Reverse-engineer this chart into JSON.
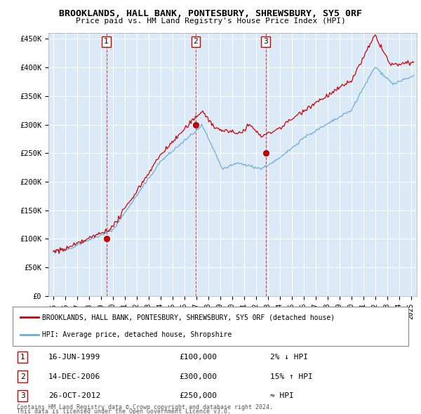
{
  "title": "BROOKLANDS, HALL BANK, PONTESBURY, SHREWSBURY, SY5 0RF",
  "subtitle": "Price paid vs. HM Land Registry's House Price Index (HPI)",
  "ylim": [
    0,
    460000
  ],
  "yticks": [
    0,
    50000,
    100000,
    150000,
    200000,
    250000,
    300000,
    350000,
    400000,
    450000
  ],
  "ytick_labels": [
    "£0",
    "£50K",
    "£100K",
    "£150K",
    "£200K",
    "£250K",
    "£300K",
    "£350K",
    "£400K",
    "£450K"
  ],
  "sale_dates": [
    "1999-06-16",
    "2006-12-14",
    "2012-10-26"
  ],
  "sale_prices": [
    100000,
    300000,
    250000
  ],
  "sale_years": [
    1999.46,
    2006.96,
    2012.82
  ],
  "sale_labels": [
    "1",
    "2",
    "3"
  ],
  "sale_info": [
    {
      "label": "1",
      "date": "16-JUN-1999",
      "price": "£100,000",
      "hpi": "2% ↓ HPI"
    },
    {
      "label": "2",
      "date": "14-DEC-2006",
      "price": "£300,000",
      "hpi": "15% ↑ HPI"
    },
    {
      "label": "3",
      "date": "26-OCT-2012",
      "price": "£250,000",
      "hpi": "≈ HPI"
    }
  ],
  "legend_line1": "BROOKLANDS, HALL BANK, PONTESBURY, SHREWSBURY, SY5 0RF (detached house)",
  "legend_line2": "HPI: Average price, detached house, Shropshire",
  "footer1": "Contains HM Land Registry data © Crown copyright and database right 2024.",
  "footer2": "This data is licensed under the Open Government Licence v3.0.",
  "plot_bg_color": "#dce9f7",
  "grid_color": "#ffffff",
  "hpi_color": "#6baed6",
  "price_color": "#cc0000",
  "sale_marker_color": "#cc0000",
  "box_edge_color": "#cc0000"
}
